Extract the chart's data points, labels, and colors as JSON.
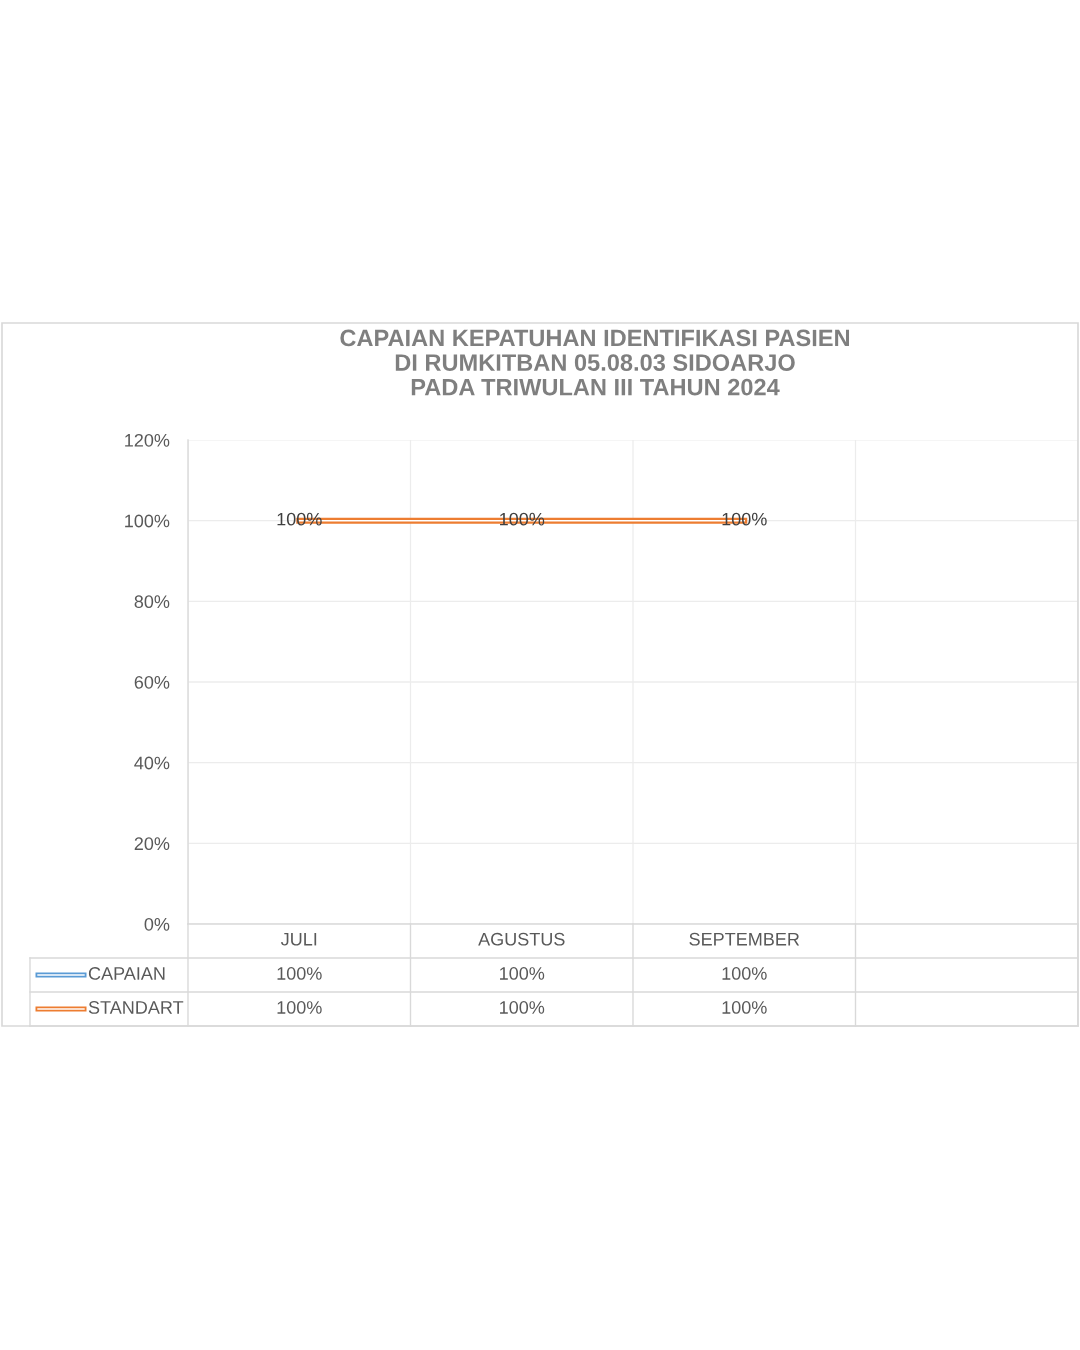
{
  "chart_data": {
    "type": "line",
    "title": "CAPAIAN KEPATUHAN IDENTIFIKASI PASIEN\nDI RUMKITBAN 05.08.03 SIDOARJO\nPADA TRIWULAN III TAHUN 2024",
    "categories": [
      "JULI",
      "AGUSTUS",
      "SEPTEMBER",
      null
    ],
    "series": [
      {
        "name": "CAPAIAN",
        "color": "#5b9bd5",
        "values": [
          null,
          null,
          null,
          null
        ],
        "value_labels": [
          "100%",
          "100%",
          "100%",
          null
        ]
      },
      {
        "name": "STANDART",
        "color": "#ed7d31",
        "values": [
          100,
          100,
          100,
          null
        ],
        "value_labels": [
          "100%",
          "100%",
          "100%",
          null
        ]
      }
    ],
    "ylim": [
      0,
      120
    ],
    "yticks": [
      {
        "value": 0,
        "label": "0%"
      },
      {
        "value": 20,
        "label": "20%"
      },
      {
        "value": 40,
        "label": "40%"
      },
      {
        "value": 60,
        "label": "60%"
      },
      {
        "value": 80,
        "label": "80%"
      },
      {
        "value": 100,
        "label": "100%"
      },
      {
        "value": 120,
        "label": "120%"
      }
    ],
    "grid": true,
    "legend": "bottom",
    "marker": "none",
    "line_style": "solid"
  }
}
